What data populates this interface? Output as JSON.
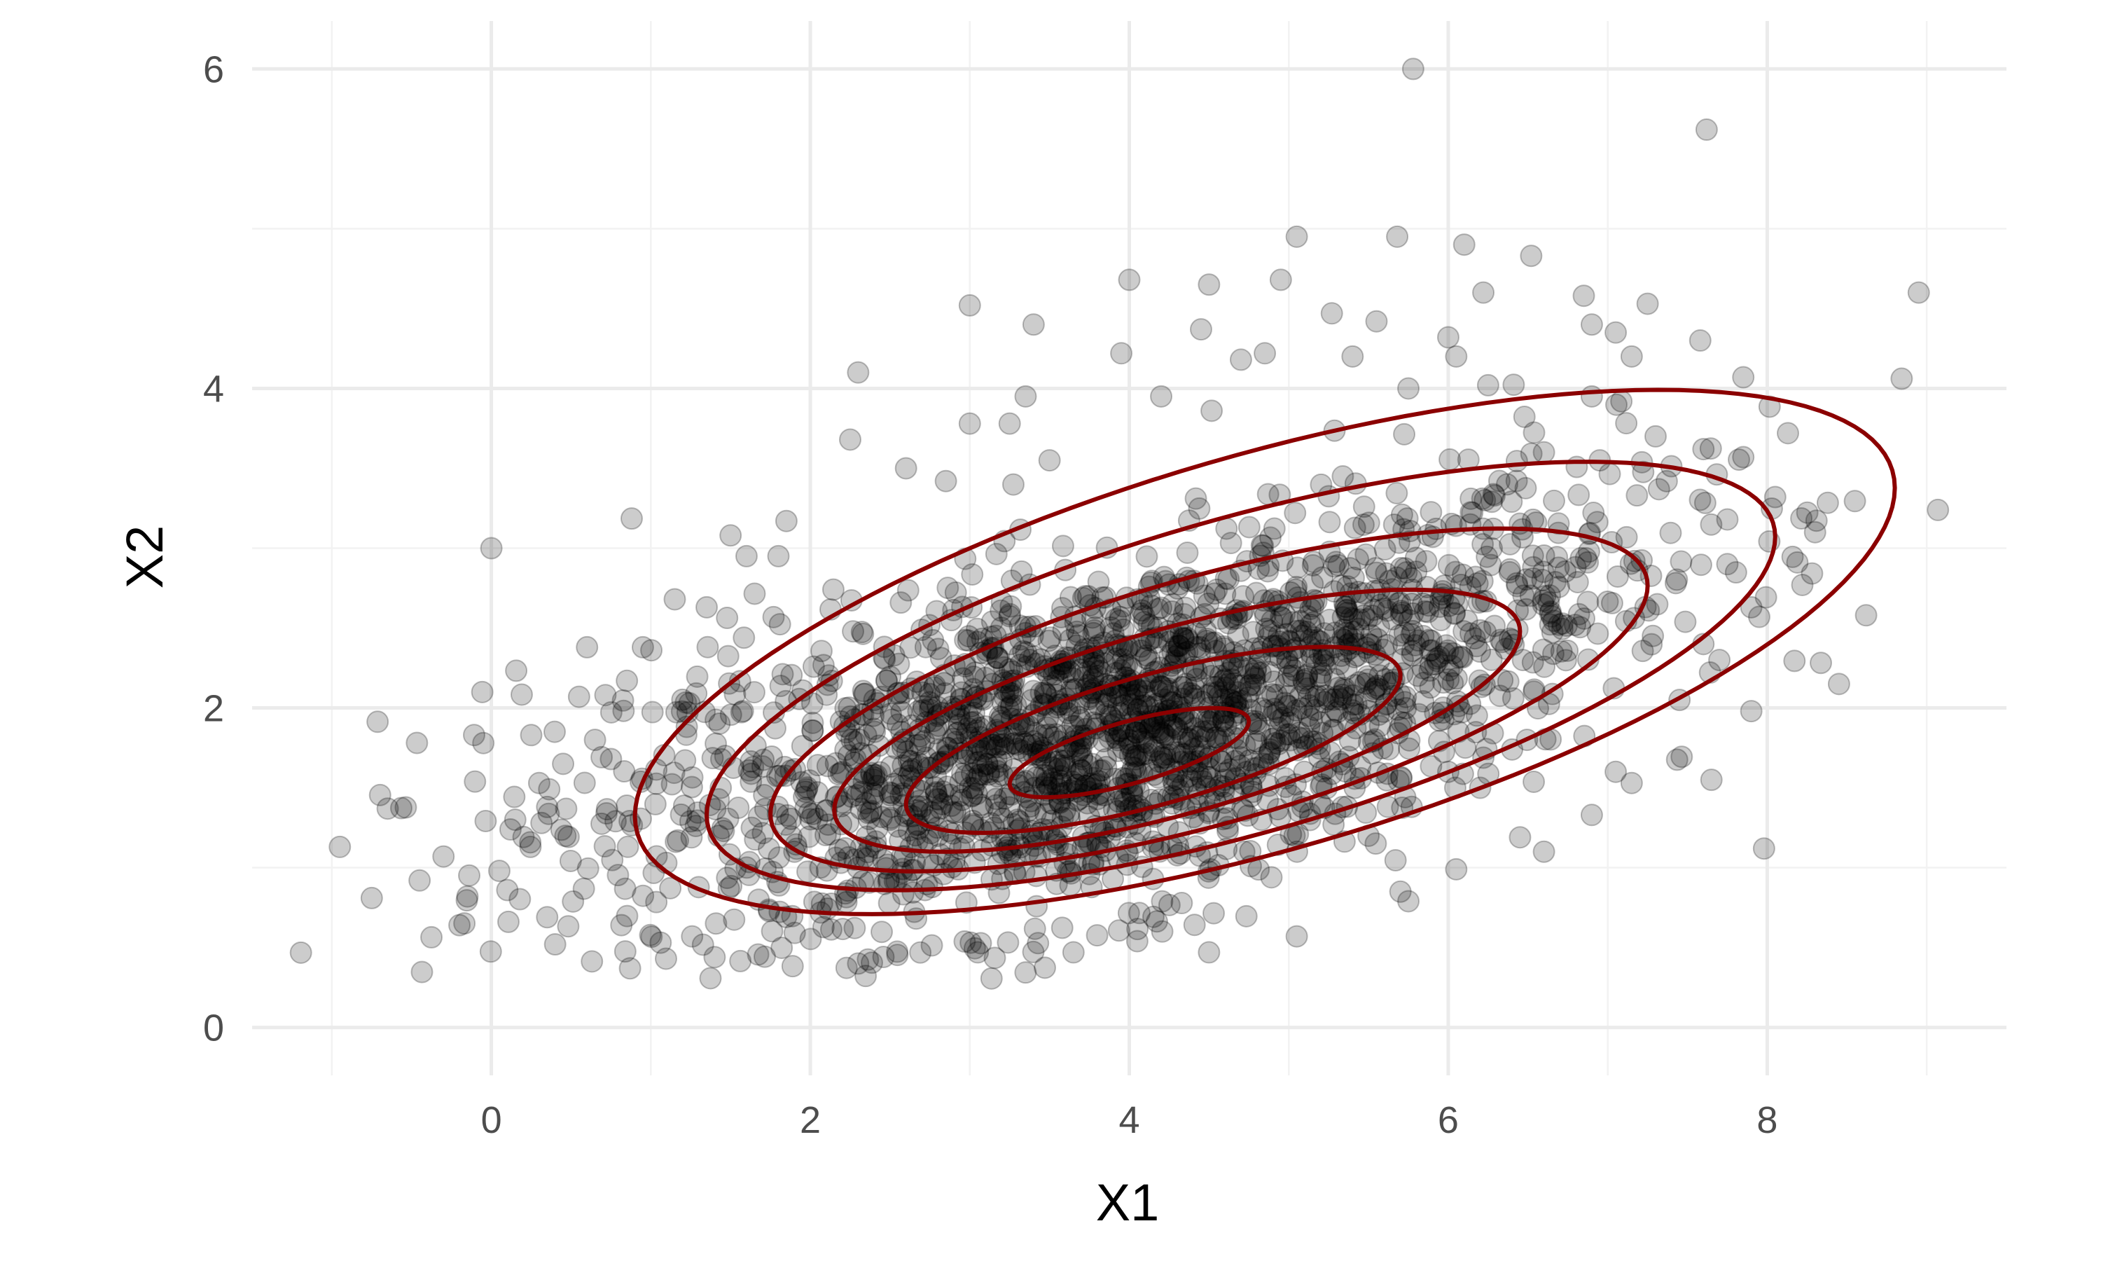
{
  "chart_data": {
    "type": "scatter",
    "title": "",
    "xlabel": "X1",
    "ylabel": "X2",
    "xlim": [
      -1.5,
      9.5
    ],
    "ylim": [
      -0.3,
      6.3
    ],
    "x_ticks": [
      0,
      2,
      4,
      6,
      8
    ],
    "y_ticks": [
      0,
      2,
      4,
      6
    ],
    "grid": true,
    "legend": "none",
    "point_color": "#000000",
    "point_opacity": 0.2,
    "contour_color": "#8b0000",
    "points_sample": [
      [
        5.78,
        6.0
      ],
      [
        7.62,
        5.62
      ],
      [
        8.95,
        4.6
      ],
      [
        5.05,
        4.95
      ],
      [
        5.68,
        4.95
      ],
      [
        6.1,
        4.9
      ],
      [
        6.52,
        4.83
      ],
      [
        4.0,
        4.68
      ],
      [
        4.95,
        4.68
      ],
      [
        4.5,
        4.65
      ],
      [
        3.0,
        4.52
      ],
      [
        6.22,
        4.6
      ],
      [
        6.85,
        4.58
      ],
      [
        7.25,
        4.53
      ],
      [
        5.27,
        4.47
      ],
      [
        5.55,
        4.42
      ],
      [
        3.4,
        4.4
      ],
      [
        4.45,
        4.37
      ],
      [
        6.9,
        4.4
      ],
      [
        7.05,
        4.35
      ],
      [
        6.0,
        4.32
      ],
      [
        7.58,
        4.3
      ],
      [
        5.4,
        4.2
      ],
      [
        3.95,
        4.22
      ],
      [
        4.85,
        4.22
      ],
      [
        6.05,
        4.2
      ],
      [
        7.15,
        4.2
      ],
      [
        4.7,
        4.18
      ],
      [
        2.3,
        4.1
      ],
      [
        7.85,
        4.07
      ],
      [
        5.75,
        4.0
      ],
      [
        6.25,
        4.02
      ],
      [
        3.35,
        3.95
      ],
      [
        4.2,
        3.95
      ],
      [
        6.9,
        3.95
      ],
      [
        2.25,
        3.68
      ],
      [
        3.0,
        3.78
      ],
      [
        3.25,
        3.78
      ],
      [
        8.13,
        3.72
      ],
      [
        7.3,
        3.7
      ],
      [
        7.6,
        3.62
      ],
      [
        3.5,
        3.55
      ],
      [
        7.85,
        3.57
      ],
      [
        2.6,
        3.5
      ],
      [
        2.85,
        3.42
      ],
      [
        6.6,
        3.6
      ],
      [
        6.95,
        3.55
      ],
      [
        8.05,
        3.32
      ],
      [
        7.75,
        3.18
      ],
      [
        8.3,
        3.1
      ],
      [
        1.5,
        3.08
      ],
      [
        1.85,
        3.17
      ],
      [
        0.0,
        3.0
      ],
      [
        1.6,
        2.95
      ],
      [
        1.8,
        2.95
      ],
      [
        7.75,
        2.9
      ],
      [
        8.22,
        2.77
      ],
      [
        1.15,
        2.68
      ],
      [
        1.35,
        2.63
      ],
      [
        7.9,
        2.63
      ],
      [
        8.62,
        2.58
      ],
      [
        7.95,
        2.57
      ],
      [
        0.6,
        2.38
      ],
      [
        0.95,
        2.38
      ],
      [
        7.6,
        2.4
      ],
      [
        7.7,
        2.3
      ],
      [
        0.85,
        2.17
      ],
      [
        0.55,
        2.07
      ],
      [
        8.45,
        2.15
      ],
      [
        7.45,
        2.05
      ],
      [
        7.9,
        1.98
      ],
      [
        0.25,
        1.83
      ],
      [
        0.65,
        1.8
      ],
      [
        -0.05,
        1.78
      ],
      [
        0.75,
        1.68
      ],
      [
        0.45,
        1.65
      ],
      [
        0.3,
        1.53
      ],
      [
        0.35,
        1.38
      ],
      [
        0.15,
        1.3
      ],
      [
        -0.65,
        1.37
      ],
      [
        -0.95,
        1.13
      ],
      [
        -0.3,
        1.07
      ],
      [
        0.05,
        0.98
      ],
      [
        -0.45,
        0.92
      ],
      [
        -0.75,
        0.81
      ],
      [
        -0.15,
        0.82
      ],
      [
        0.1,
        0.86
      ],
      [
        0.35,
        0.69
      ],
      [
        -0.2,
        0.64
      ],
      [
        0.4,
        0.52
      ],
      [
        7.98,
        1.12
      ],
      [
        7.65,
        1.55
      ],
      [
        7.15,
        1.53
      ],
      [
        7.05,
        1.6
      ],
      [
        6.9,
        1.33
      ],
      [
        3.05,
        0.47
      ],
      [
        3.65,
        0.47
      ],
      [
        4.05,
        0.54
      ],
      [
        4.5,
        0.47
      ],
      [
        5.05,
        0.57
      ],
      [
        2.3,
        0.4
      ],
      [
        1.4,
        0.44
      ],
      [
        5.7,
        0.85
      ],
      [
        5.75,
        0.79
      ],
      [
        6.05,
        0.99
      ],
      [
        6.45,
        1.19
      ],
      [
        6.6,
        1.1
      ],
      [
        6.2,
        1.5
      ],
      [
        6.0,
        1.6
      ],
      [
        5.5,
        1.2
      ],
      [
        1.9,
        1.1
      ],
      [
        2.5,
        1.3
      ],
      [
        3.0,
        1.5
      ],
      [
        3.5,
        1.5
      ],
      [
        4.0,
        1.8
      ],
      [
        4.5,
        2.0
      ],
      [
        5.0,
        2.2
      ],
      [
        5.5,
        2.4
      ],
      [
        3.2,
        1.9
      ],
      [
        3.8,
        2.2
      ],
      [
        4.3,
        1.6
      ],
      [
        4.8,
        1.9
      ],
      [
        2.8,
        1.2
      ],
      [
        3.3,
        1.3
      ],
      [
        2.2,
        1.6
      ]
    ]
  }
}
